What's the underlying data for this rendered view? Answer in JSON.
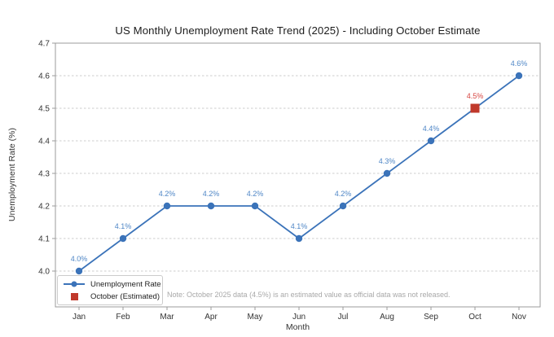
{
  "chart_data": {
    "type": "line",
    "title": "US Monthly Unemployment Rate Trend (2025) - Including October Estimate",
    "xlabel": "Month",
    "ylabel": "Unemployment Rate (%)",
    "categories": [
      "Jan",
      "Feb",
      "Mar",
      "Apr",
      "May",
      "Jun",
      "Jul",
      "Aug",
      "Sep",
      "Oct",
      "Nov"
    ],
    "series": [
      {
        "name": "Unemployment Rate",
        "values": [
          4.0,
          4.1,
          4.2,
          4.2,
          4.2,
          4.1,
          4.2,
          4.3,
          4.4,
          4.5,
          4.6
        ],
        "color": "#3b73b9",
        "marker": "circle",
        "label_color": "#4e86c6"
      }
    ],
    "estimated_point": {
      "name": "October (Estimated)",
      "category": "Oct",
      "index": 9,
      "value": 4.5,
      "marker": "square",
      "color": "#c0392b",
      "label_color": "#d64541"
    },
    "data_labels": [
      "4.0%",
      "4.1%",
      "4.2%",
      "4.2%",
      "4.2%",
      "4.1%",
      "4.2%",
      "4.3%",
      "4.4%",
      "4.5%",
      "4.6%"
    ],
    "yticks": [
      4.0,
      4.1,
      4.2,
      4.3,
      4.4,
      4.5,
      4.6,
      4.7
    ],
    "ylim": [
      3.89,
      4.7
    ],
    "grid": true,
    "grid_style": "dashed",
    "legend_position": "lower left",
    "note": "Note: October 2025 data (4.5%) is an estimated value as official data was not released."
  },
  "legend": {
    "entries": [
      {
        "label": "Unemployment Rate",
        "swatch": "line-with-dot",
        "color": "#3b73b9"
      },
      {
        "label": "October (Estimated)",
        "swatch": "square",
        "color": "#c0392b"
      }
    ]
  },
  "colors": {
    "background": "#ffffff",
    "grid": "#cdcdcd",
    "spine": "#9b9b9b",
    "tick_label": "#333333",
    "title": "#1c1c1c",
    "note": "#a8a8a8"
  }
}
